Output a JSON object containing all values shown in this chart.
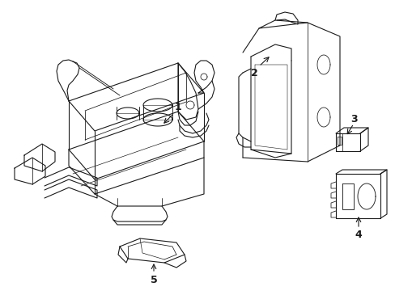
{
  "background_color": "#ffffff",
  "line_color": "#1a1a1a",
  "line_width": 0.8,
  "figsize": [
    4.89,
    3.6
  ],
  "dpi": 100
}
